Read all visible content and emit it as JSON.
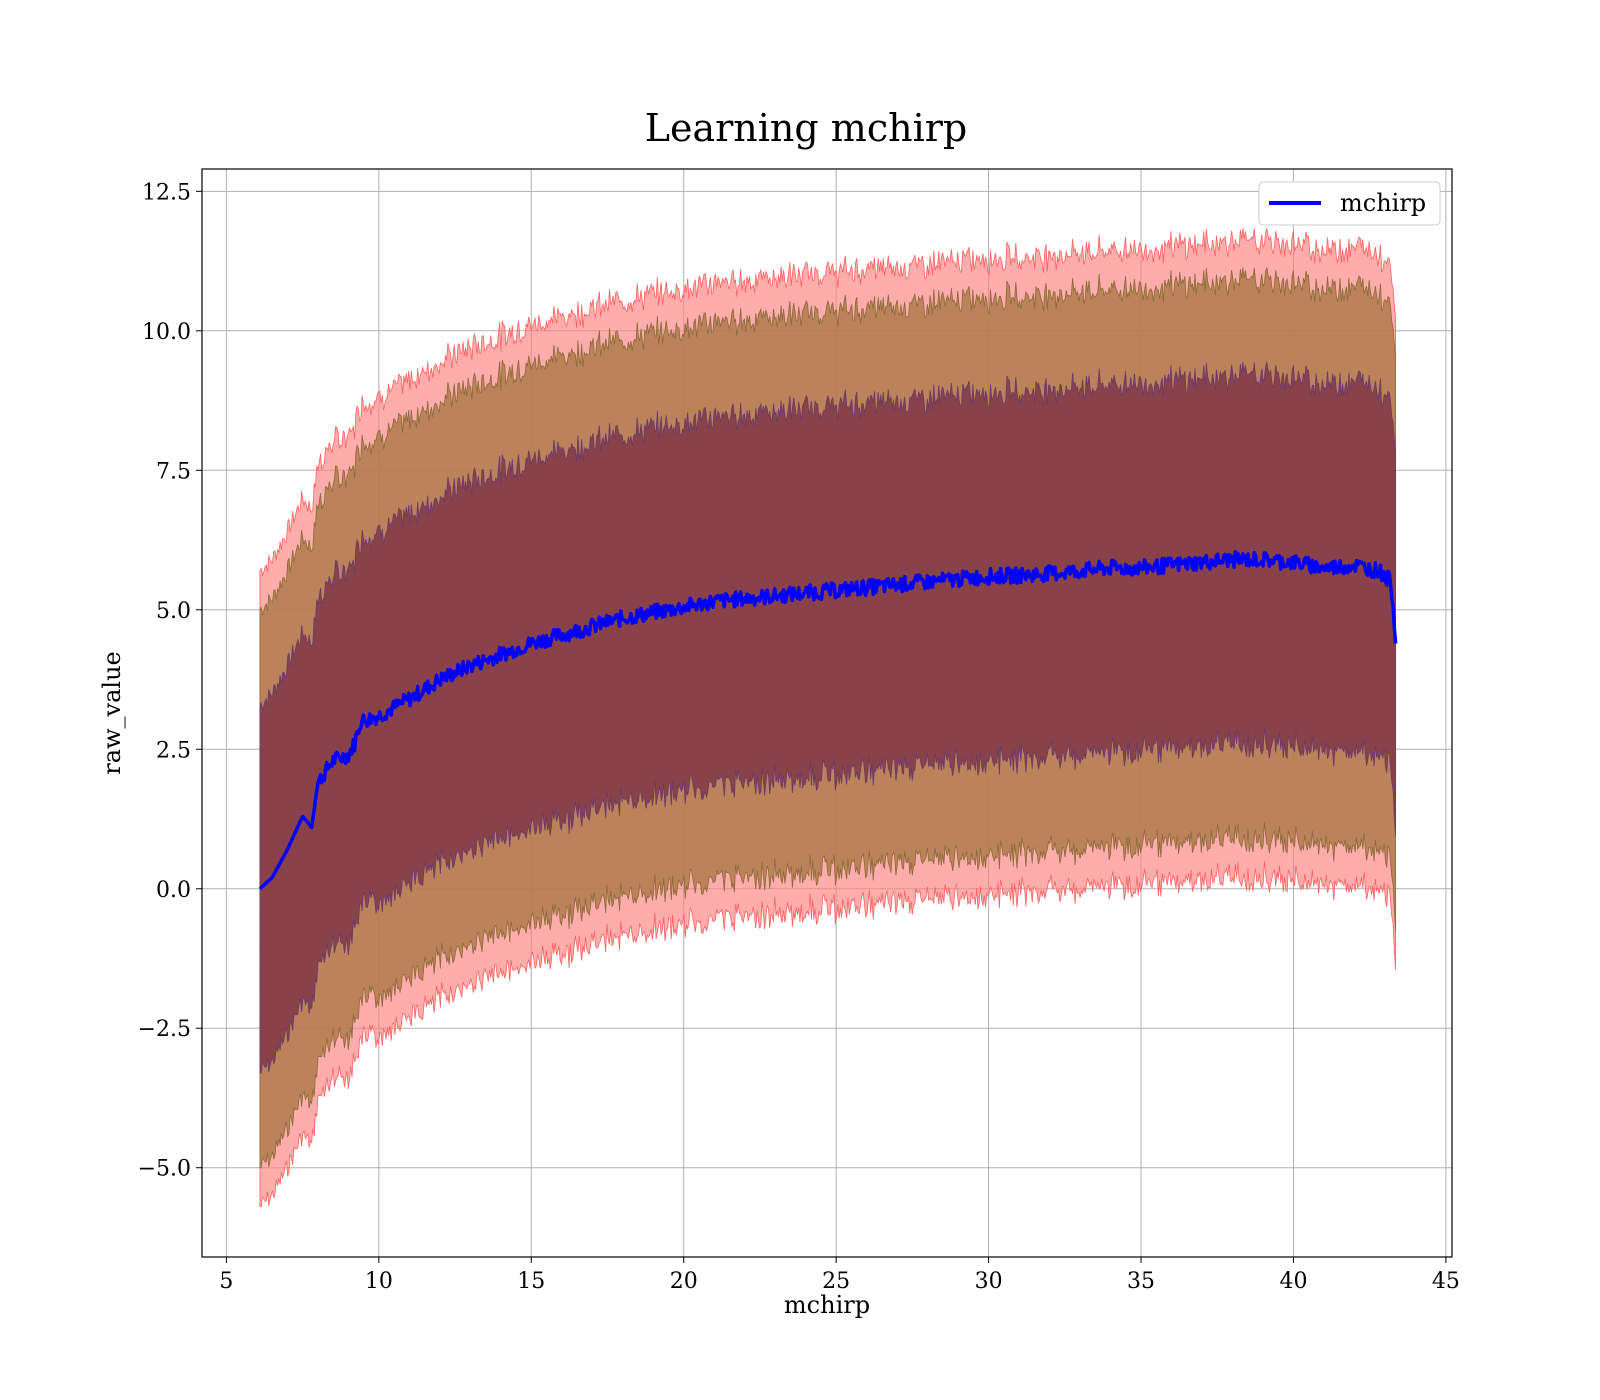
{
  "chart_data": {
    "type": "line",
    "title": "Learning mchirp",
    "xlabel": "mchirp",
    "ylabel": "raw_value",
    "xlim": [
      4.2,
      45.2
    ],
    "ylim": [
      -6.6,
      12.9
    ],
    "xticks": [
      5,
      10,
      15,
      20,
      25,
      30,
      35,
      40,
      45
    ],
    "xtick_labels": [
      "5",
      "10",
      "15",
      "20",
      "25",
      "30",
      "35",
      "40",
      "45"
    ],
    "yticks": [
      -5.0,
      -2.5,
      0.0,
      2.5,
      5.0,
      7.5,
      10.0,
      12.5
    ],
    "ytick_labels": [
      "−5.0",
      "−2.5",
      "0.0",
      "2.5",
      "5.0",
      "7.5",
      "10.0",
      "12.5"
    ],
    "grid": true,
    "legend": {
      "position": "upper right",
      "entries": [
        "mchirp"
      ]
    },
    "series": [
      {
        "name": "mchirp",
        "color": "#0000ff",
        "x": [
          6.1,
          6.5,
          7.0,
          7.5,
          7.8,
          8.0,
          8.5,
          9.0,
          9.2,
          9.4,
          10.0,
          11.0,
          12.0,
          13.0,
          14.0,
          15.0,
          16.0,
          17.0,
          18.0,
          19.0,
          20.0,
          21.0,
          22.0,
          23.0,
          24.0,
          25.0,
          26.0,
          27.0,
          28.0,
          29.0,
          30.0,
          31.0,
          32.0,
          33.0,
          34.0,
          35.0,
          36.0,
          37.0,
          38.0,
          39.0,
          40.0,
          41.0,
          42.0,
          42.8,
          43.2,
          43.35
        ],
        "y": [
          0.0,
          0.2,
          0.7,
          1.3,
          1.1,
          1.9,
          2.3,
          2.4,
          2.6,
          3.0,
          3.1,
          3.4,
          3.75,
          4.0,
          4.2,
          4.4,
          4.55,
          4.7,
          4.85,
          4.95,
          5.05,
          5.15,
          5.2,
          5.25,
          5.3,
          5.35,
          5.4,
          5.45,
          5.5,
          5.55,
          5.6,
          5.62,
          5.65,
          5.7,
          5.75,
          5.75,
          5.8,
          5.85,
          5.9,
          5.9,
          5.85,
          5.75,
          5.8,
          5.7,
          5.5,
          4.5
        ],
        "band_sigma_1": 3.3,
        "band_sigma_2": 5.0,
        "band_sigma_3": 5.7
      }
    ],
    "bands": {
      "sigma_1_color": "#7a2c45",
      "sigma_2_color": "#b07a4a",
      "sigma_3_color": "#ff8080"
    }
  }
}
